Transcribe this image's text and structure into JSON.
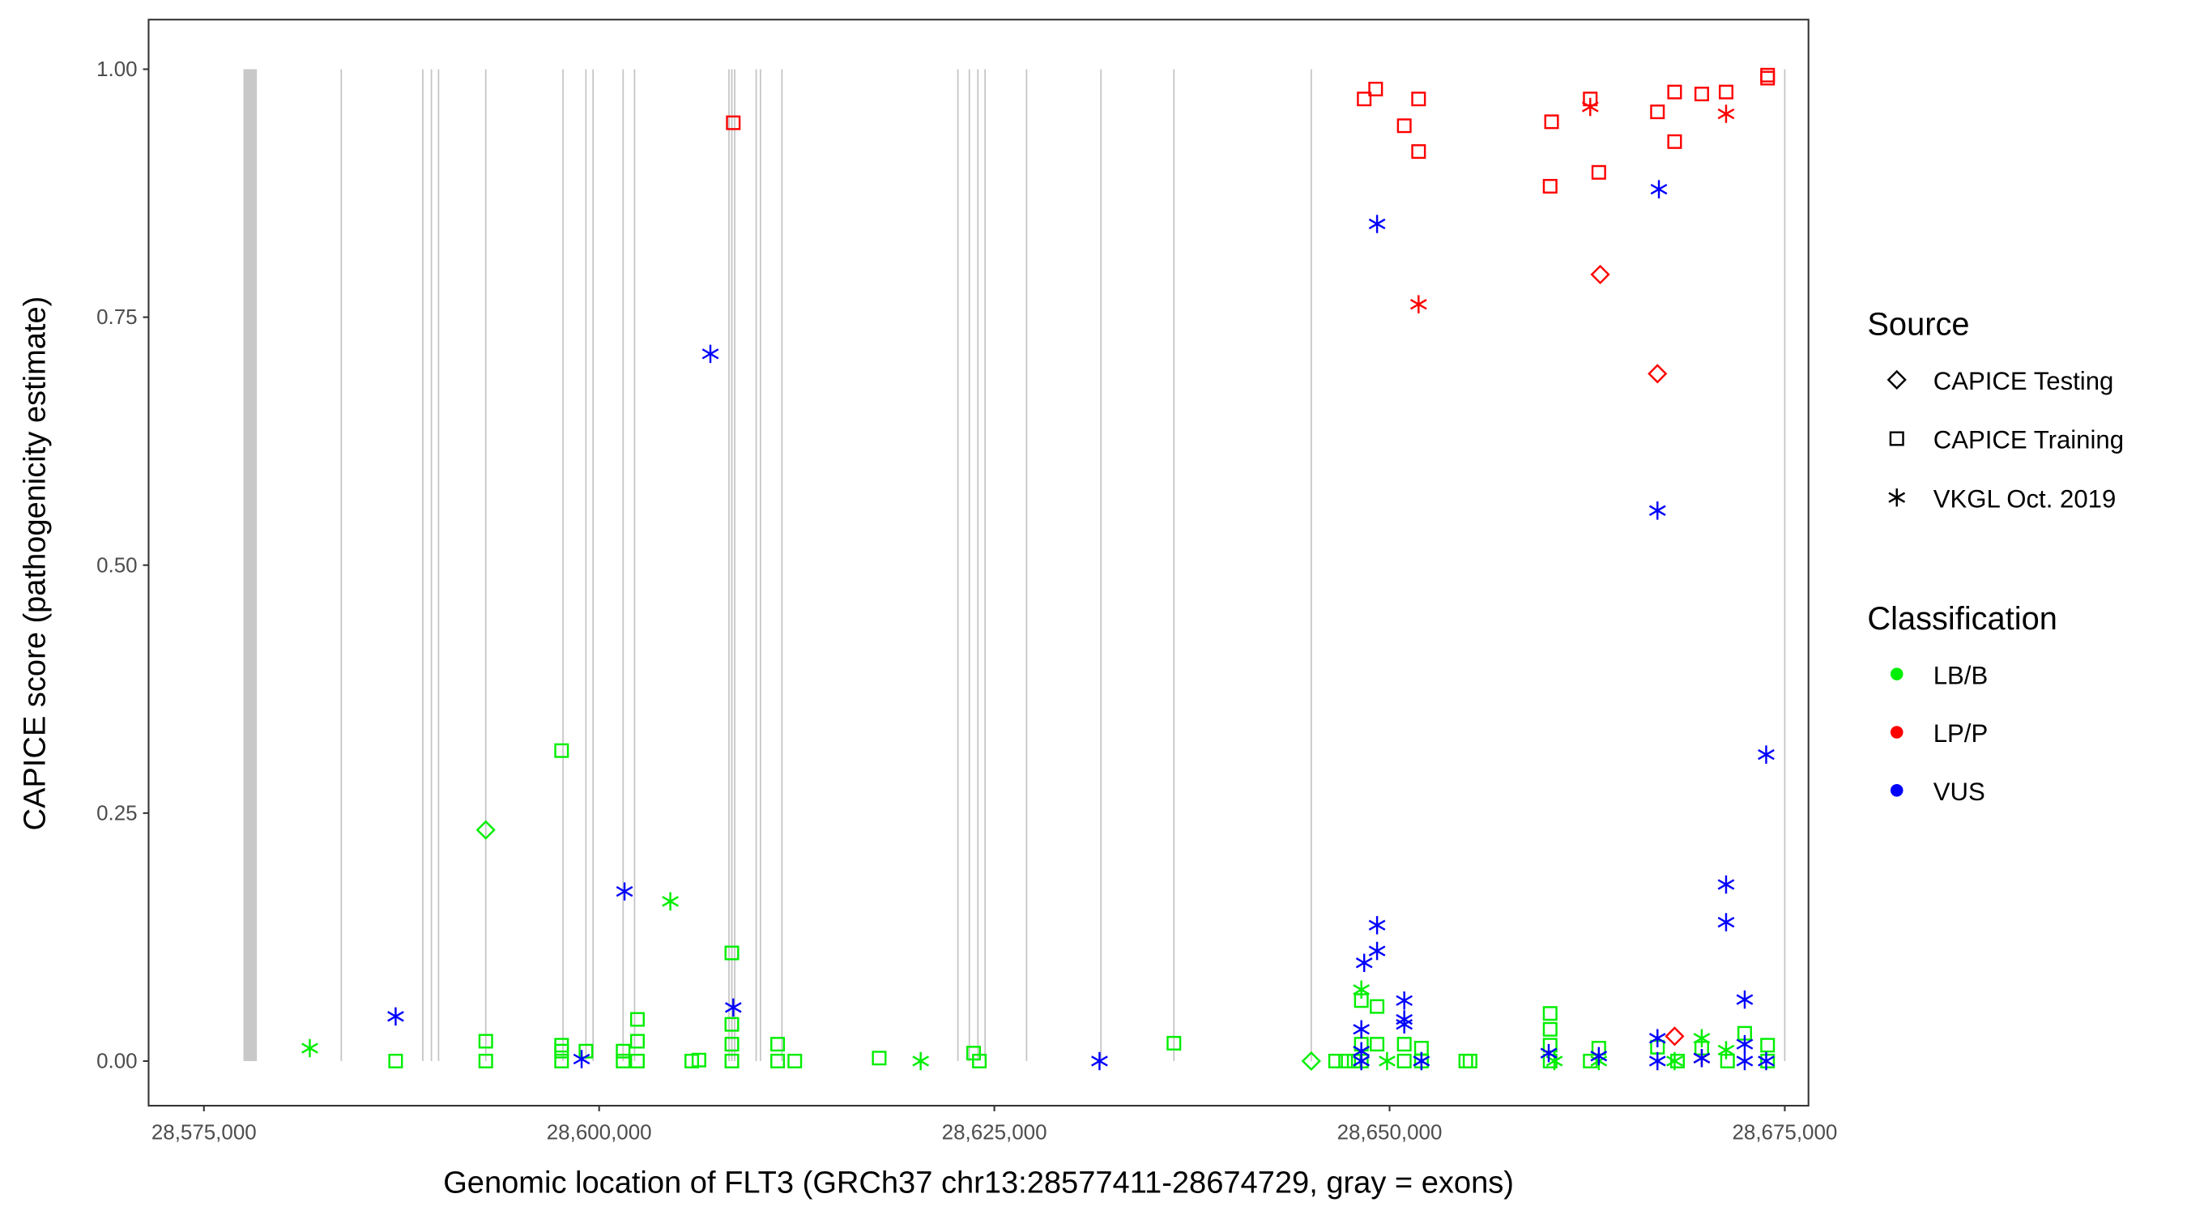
{
  "chart_data": {
    "type": "scatter",
    "xlabel": "Genomic location of FLT3 (GRCh37 chr13:28577411-28674729, gray = exons)",
    "ylabel": "CAPICE score (pathogenicity estimate)",
    "xlim": [
      28571500,
      28676500
    ],
    "ylim": [
      -0.045,
      1.05
    ],
    "x_ticks": [
      28575000,
      28600000,
      28625000,
      28650000,
      28675000
    ],
    "x_tick_labels": [
      "28,575,000",
      "28,600,000",
      "28,625,000",
      "28,650,000",
      "28,675,000"
    ],
    "y_ticks": [
      0,
      0.25,
      0.5,
      0.75,
      1.0
    ],
    "y_tick_labels": [
      "0.00",
      "0.25",
      "0.50",
      "0.75",
      "1.00"
    ],
    "grid": false,
    "exon_band": [
      28577500,
      28578350
    ],
    "exons": [
      28583688,
      28588846,
      28589390,
      28589842,
      28592829,
      28597716,
      28599164,
      28599616,
      28601517,
      28602241,
      28608214,
      28608395,
      28608576,
      28609933,
      28610205,
      28611563,
      28622694,
      28623418,
      28623961,
      28624414,
      28627038,
      28631744,
      28636359,
      28645047,
      28675000
    ],
    "legend": {
      "placement": "right",
      "source_title": "Source",
      "source_items": [
        {
          "key": "T",
          "label": "CAPICE Testing",
          "shape": "diamond"
        },
        {
          "key": "R",
          "label": "CAPICE Training",
          "shape": "square"
        },
        {
          "key": "V",
          "label": "VKGL Oct. 2019",
          "shape": "asterisk"
        }
      ],
      "class_title": "Classification",
      "class_items": [
        {
          "key": "B",
          "label": "LB/B",
          "color": "#00ee00"
        },
        {
          "key": "P",
          "label": "LP/P",
          "color": "#ff0000"
        },
        {
          "key": "U",
          "label": "VUS",
          "color": "#0000ff"
        }
      ]
    },
    "points_columns": [
      "position",
      "score",
      "source",
      "classification"
    ],
    "points": [
      [
        28581697,
        0.013,
        "V",
        "B"
      ],
      [
        28587127,
        0,
        "R",
        "B"
      ],
      [
        28592829,
        0.02,
        "R",
        "B"
      ],
      [
        28592829,
        0,
        "R",
        "B"
      ],
      [
        28592829,
        0.233,
        "T",
        "B"
      ],
      [
        28597625,
        0.313,
        "R",
        "B"
      ],
      [
        28597625,
        0.016,
        "R",
        "B"
      ],
      [
        28597625,
        0.01,
        "R",
        "B"
      ],
      [
        28597625,
        0,
        "R",
        "B"
      ],
      [
        28599164,
        0.01,
        "R",
        "B"
      ],
      [
        28601517,
        0.01,
        "R",
        "B"
      ],
      [
        28601517,
        0,
        "R",
        "B"
      ],
      [
        28602422,
        0.042,
        "R",
        "B"
      ],
      [
        28602422,
        0.02,
        "R",
        "B"
      ],
      [
        28602422,
        0,
        "R",
        "B"
      ],
      [
        28604503,
        0.161,
        "V",
        "B"
      ],
      [
        28605860,
        0,
        "R",
        "B"
      ],
      [
        28606313,
        0.001,
        "R",
        "B"
      ],
      [
        28608395,
        0.109,
        "R",
        "B"
      ],
      [
        28608395,
        0.037,
        "R",
        "B"
      ],
      [
        28608395,
        0.017,
        "R",
        "B"
      ],
      [
        28608395,
        0,
        "R",
        "B"
      ],
      [
        28611291,
        0.017,
        "R",
        "B"
      ],
      [
        28611291,
        0,
        "R",
        "B"
      ],
      [
        28612377,
        0,
        "R",
        "B"
      ],
      [
        28617716,
        0.003,
        "R",
        "B"
      ],
      [
        28620340,
        0,
        "V",
        "B"
      ],
      [
        28623689,
        0.008,
        "R",
        "B"
      ],
      [
        28624052,
        0,
        "R",
        "B"
      ],
      [
        28636359,
        0.018,
        "R",
        "B"
      ],
      [
        28645047,
        0,
        "T",
        "B"
      ],
      [
        28646586,
        0,
        "R",
        "B"
      ],
      [
        28647220,
        0,
        "R",
        "B"
      ],
      [
        28647763,
        0,
        "R",
        "B"
      ],
      [
        28648215,
        0.072,
        "V",
        "B"
      ],
      [
        28648215,
        0.061,
        "R",
        "B"
      ],
      [
        28649210,
        0.055,
        "R",
        "B"
      ],
      [
        28648215,
        0.017,
        "R",
        "B"
      ],
      [
        28649210,
        0.017,
        "R",
        "B"
      ],
      [
        28648215,
        0,
        "R",
        "B"
      ],
      [
        28648215,
        0,
        "V",
        "B"
      ],
      [
        28649844,
        0,
        "V",
        "B"
      ],
      [
        28650931,
        0.017,
        "R",
        "B"
      ],
      [
        28650931,
        0,
        "R",
        "B"
      ],
      [
        28652017,
        0.013,
        "R",
        "B"
      ],
      [
        28652017,
        0,
        "R",
        "B"
      ],
      [
        28652017,
        0,
        "V",
        "B"
      ],
      [
        28654822,
        0,
        "R",
        "B"
      ],
      [
        28655093,
        0,
        "R",
        "B"
      ],
      [
        28660158,
        0.048,
        "R",
        "B"
      ],
      [
        28660158,
        0.032,
        "R",
        "B"
      ],
      [
        28660158,
        0.016,
        "R",
        "B"
      ],
      [
        28660158,
        0,
        "R",
        "B"
      ],
      [
        28660430,
        0,
        "V",
        "B"
      ],
      [
        28662695,
        0,
        "R",
        "B"
      ],
      [
        28663236,
        0.013,
        "R",
        "B"
      ],
      [
        28663236,
        0,
        "V",
        "B"
      ],
      [
        28666947,
        0.014,
        "R",
        "B"
      ],
      [
        28668214,
        0,
        "R",
        "B"
      ],
      [
        28668033,
        0,
        "V",
        "B"
      ],
      [
        28669749,
        0.023,
        "V",
        "B"
      ],
      [
        28669749,
        0.013,
        "R",
        "B"
      ],
      [
        28671288,
        0.011,
        "V",
        "B"
      ],
      [
        28671378,
        0,
        "R",
        "B"
      ],
      [
        28672466,
        0.028,
        "R",
        "B"
      ],
      [
        28673914,
        0.016,
        "R",
        "B"
      ],
      [
        28673914,
        0,
        "R",
        "B"
      ],
      [
        28608486,
        0.946,
        "R",
        "P"
      ],
      [
        28648396,
        0.97,
        "R",
        "P"
      ],
      [
        28649120,
        0.98,
        "R",
        "P"
      ],
      [
        28650931,
        0.943,
        "R",
        "P"
      ],
      [
        28651836,
        0.97,
        "R",
        "P"
      ],
      [
        28651836,
        0.917,
        "R",
        "P"
      ],
      [
        28651836,
        0.763,
        "V",
        "P"
      ],
      [
        28660158,
        0.882,
        "R",
        "P"
      ],
      [
        28660249,
        0.947,
        "R",
        "P"
      ],
      [
        28662695,
        0.97,
        "R",
        "P"
      ],
      [
        28662695,
        0.962,
        "V",
        "P"
      ],
      [
        28663236,
        0.896,
        "R",
        "P"
      ],
      [
        28663326,
        0.793,
        "T",
        "P"
      ],
      [
        28666947,
        0.957,
        "R",
        "P"
      ],
      [
        28666947,
        0.693,
        "T",
        "P"
      ],
      [
        28668033,
        0.977,
        "R",
        "P"
      ],
      [
        28668033,
        0.927,
        "R",
        "P"
      ],
      [
        28669749,
        0.975,
        "R",
        "P"
      ],
      [
        28671288,
        0.977,
        "R",
        "P"
      ],
      [
        28671288,
        0.955,
        "V",
        "P"
      ],
      [
        28673914,
        0.991,
        "R",
        "P"
      ],
      [
        28673914,
        0.994,
        "R",
        "P"
      ],
      [
        28668033,
        0.025,
        "T",
        "P"
      ],
      [
        28669749,
        0.003,
        "V",
        "P"
      ],
      [
        28587127,
        0.045,
        "V",
        "U"
      ],
      [
        28598892,
        0.002,
        "V",
        "U"
      ],
      [
        28601607,
        0.171,
        "V",
        "U"
      ],
      [
        28607037,
        0.713,
        "V",
        "U"
      ],
      [
        28608486,
        0.054,
        "V",
        "U"
      ],
      [
        28631653,
        0,
        "V",
        "U"
      ],
      [
        28649210,
        0.844,
        "V",
        "U"
      ],
      [
        28648396,
        0.099,
        "V",
        "U"
      ],
      [
        28649210,
        0.137,
        "V",
        "U"
      ],
      [
        28649210,
        0.111,
        "V",
        "U"
      ],
      [
        28648215,
        0.032,
        "V",
        "U"
      ],
      [
        28648215,
        0.01,
        "V",
        "U"
      ],
      [
        28648215,
        0,
        "V",
        "U"
      ],
      [
        28650931,
        0.061,
        "V",
        "U"
      ],
      [
        28650931,
        0.042,
        "V",
        "U"
      ],
      [
        28650931,
        0.037,
        "V",
        "U"
      ],
      [
        28652017,
        0,
        "V",
        "U"
      ],
      [
        28660068,
        0.008,
        "V",
        "U"
      ],
      [
        28663236,
        0.005,
        "V",
        "U"
      ],
      [
        28667038,
        0.879,
        "V",
        "U"
      ],
      [
        28666947,
        0.555,
        "V",
        "U"
      ],
      [
        28666947,
        0.023,
        "V",
        "U"
      ],
      [
        28666947,
        0,
        "V",
        "U"
      ],
      [
        28669749,
        0.003,
        "V",
        "U"
      ],
      [
        28671288,
        0.178,
        "V",
        "U"
      ],
      [
        28671288,
        0.14,
        "V",
        "U"
      ],
      [
        28672466,
        0.062,
        "V",
        "U"
      ],
      [
        28672466,
        0.017,
        "V",
        "U"
      ],
      [
        28672466,
        0,
        "V",
        "U"
      ],
      [
        28673824,
        0.309,
        "V",
        "U"
      ],
      [
        28673824,
        0,
        "V",
        "U"
      ]
    ]
  }
}
